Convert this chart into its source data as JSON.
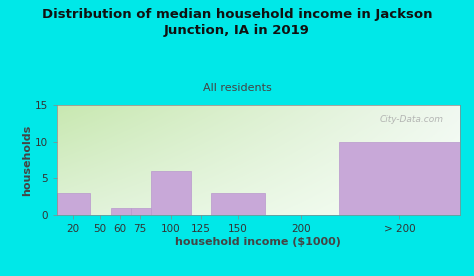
{
  "title": "Distribution of median household income in Jackson\nJunction, IA in 2019",
  "subtitle": "All residents",
  "xlabel": "household income ($1000)",
  "ylabel": "households",
  "bar_left_edges": [
    0,
    25,
    40,
    55,
    70,
    100,
    115,
    155,
    210
  ],
  "bar_widths": [
    25,
    15,
    15,
    15,
    30,
    15,
    40,
    55,
    90
  ],
  "bar_heights": [
    3,
    0,
    1,
    1,
    6,
    0,
    3,
    0,
    10
  ],
  "bar_color": "#c8a8d8",
  "bar_edgecolor": "#b898cc",
  "xtick_positions": [
    12,
    32,
    47,
    62,
    85,
    107,
    135,
    182,
    255
  ],
  "xtick_labels": [
    "20",
    "50",
    "60",
    "75",
    "100",
    "125",
    "150",
    "200",
    "> 200"
  ],
  "yticks": [
    0,
    5,
    10,
    15
  ],
  "ylim": [
    0,
    15
  ],
  "xlim": [
    0,
    300
  ],
  "bg_outer": "#00e8e8",
  "bg_inner_top": "#c8e8b0",
  "bg_inner_bottom": "#e8f5e0",
  "bg_inner_right": "#f0f8ff",
  "watermark": "City-Data.com",
  "title_fontsize": 9.5,
  "subtitle_fontsize": 8,
  "axis_label_fontsize": 8,
  "tick_fontsize": 7.5
}
